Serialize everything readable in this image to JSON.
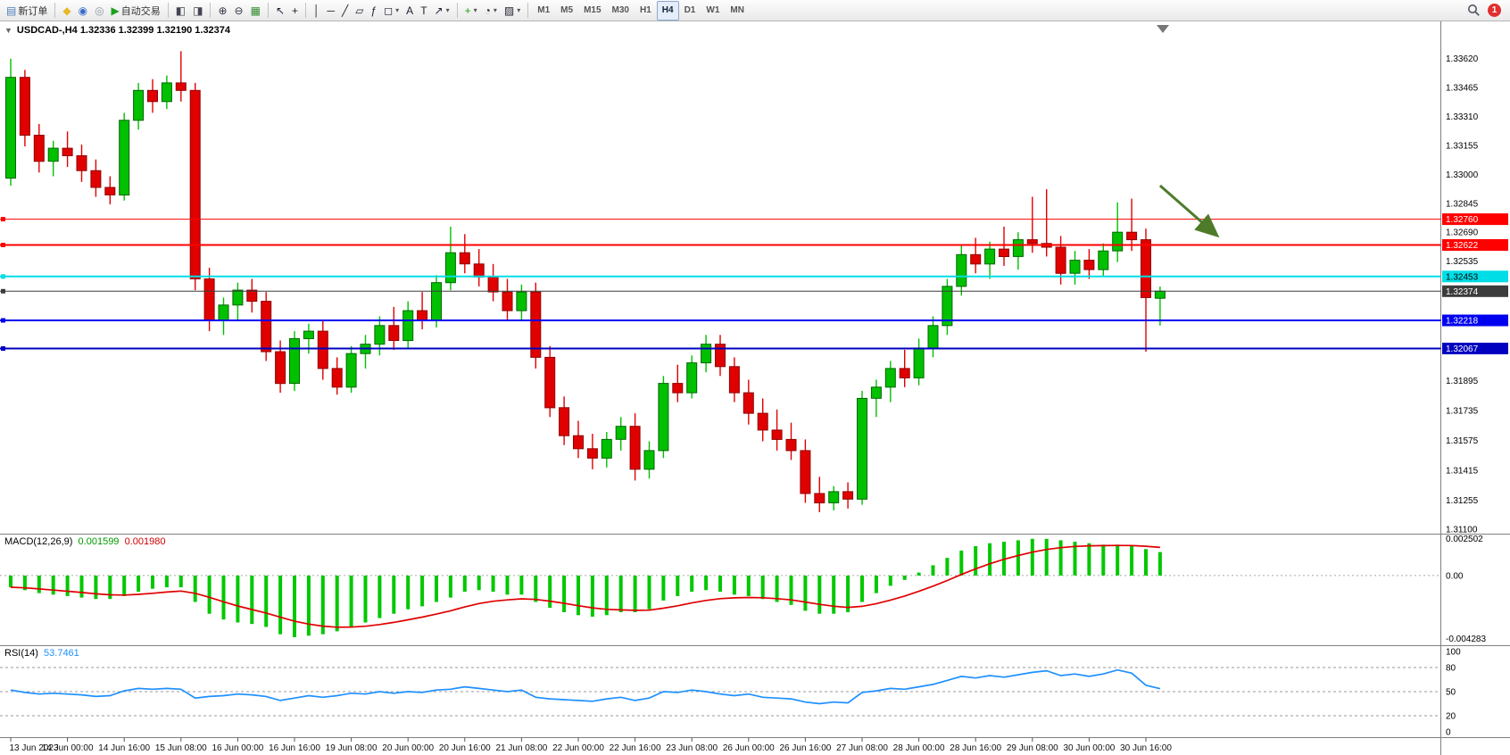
{
  "toolbar": {
    "items": [
      {
        "kind": "button",
        "name": "new-order-button",
        "icon": "new-order-icon",
        "glyph": "▤",
        "glyph_color": "#4a7ebb",
        "label": "新订单"
      },
      {
        "kind": "sep"
      },
      {
        "kind": "icon",
        "name": "favorites-icon",
        "glyph": "◆",
        "color": "#e9b728"
      },
      {
        "kind": "icon",
        "name": "community-icon",
        "glyph": "◉",
        "color": "#3a6bc9"
      },
      {
        "kind": "icon",
        "name": "support-icon",
        "glyph": "◎",
        "color": "#8a9aa8"
      },
      {
        "kind": "button",
        "name": "auto-trading-button",
        "icon": "play-icon",
        "glyph": "▶",
        "glyph_color": "#1da11d",
        "label": "自动交易"
      },
      {
        "kind": "sep"
      },
      {
        "kind": "icon",
        "name": "new-chart-icon",
        "glyph": "◧",
        "color": "#445"
      },
      {
        "kind": "icon",
        "name": "profiles-icon",
        "glyph": "◨",
        "color": "#445"
      },
      {
        "kind": "sep"
      },
      {
        "kind": "icon",
        "name": "zoom-in-icon",
        "glyph": "⊕",
        "color": "#334"
      },
      {
        "kind": "icon",
        "name": "zoom-out-icon",
        "glyph": "⊖",
        "color": "#334"
      },
      {
        "kind": "icon",
        "name": "tile-windows-icon",
        "glyph": "▦",
        "color": "#2e8b2e"
      },
      {
        "kind": "sep"
      },
      {
        "kind": "icon",
        "name": "cursor-icon",
        "glyph": "↖",
        "color": "#223"
      },
      {
        "kind": "icon",
        "name": "crosshair-icon",
        "glyph": "+",
        "color": "#223"
      },
      {
        "kind": "sep"
      },
      {
        "kind": "icon",
        "name": "vertical-line-icon",
        "glyph": "│",
        "color": "#223"
      },
      {
        "kind": "icon",
        "name": "horizontal-line-icon",
        "glyph": "─",
        "color": "#223"
      },
      {
        "kind": "icon",
        "name": "trendline-icon",
        "glyph": "╱",
        "color": "#223"
      },
      {
        "kind": "icon",
        "name": "channel-icon",
        "glyph": "▱",
        "color": "#223"
      },
      {
        "kind": "icon",
        "name": "fibonacci-icon",
        "glyph": "ƒ",
        "color": "#223"
      },
      {
        "kind": "icon",
        "name": "shapes-icon",
        "glyph": "◻",
        "color": "#223",
        "caret": true
      },
      {
        "kind": "icon",
        "name": "text-icon",
        "glyph": "A",
        "color": "#223"
      },
      {
        "kind": "icon",
        "name": "label-icon",
        "glyph": "T",
        "color": "#223"
      },
      {
        "kind": "icon",
        "name": "arrows-icon",
        "glyph": "↗",
        "color": "#223",
        "caret": true
      },
      {
        "kind": "sep"
      },
      {
        "kind": "icon",
        "name": "indicators-icon",
        "glyph": "+",
        "color": "#1da11d",
        "caret": true
      },
      {
        "kind": "icon",
        "name": "periods-icon",
        "glyph": "◔",
        "color": "#223",
        "caret": true
      },
      {
        "kind": "icon",
        "name": "templates-icon",
        "glyph": "▨",
        "color": "#223",
        "caret": true
      },
      {
        "kind": "sep"
      },
      {
        "kind": "tf",
        "name": "timeframe-m1-button",
        "label": "M1"
      },
      {
        "kind": "tf",
        "name": "timeframe-m5-button",
        "label": "M5"
      },
      {
        "kind": "tf",
        "name": "timeframe-m15-button",
        "label": "M15"
      },
      {
        "kind": "tf",
        "name": "timeframe-m30-button",
        "label": "M30"
      },
      {
        "kind": "tf",
        "name": "timeframe-h1-button",
        "label": "H1"
      },
      {
        "kind": "tf",
        "name": "timeframe-h4-button",
        "label": "H4",
        "active": true
      },
      {
        "kind": "tf",
        "name": "timeframe-d1-button",
        "label": "D1"
      },
      {
        "kind": "tf",
        "name": "timeframe-w1-button",
        "label": "W1"
      },
      {
        "kind": "tf",
        "name": "timeframe-mn-button",
        "label": "MN"
      }
    ],
    "right": {
      "search_icon": "search-icon",
      "notification_count": "1"
    }
  },
  "chart_header": {
    "collapse_glyph": "▼",
    "title": "USDCAD-,H4 1.32336 1.32399 1.32190 1.32374"
  },
  "panels": {
    "macd": {
      "label": "MACD(12,26,9)",
      "main": "0.001599",
      "signal": "0.001980"
    },
    "rsi": {
      "label": "RSI(14)",
      "value": "53.7461"
    }
  },
  "colors": {
    "candle_up": "#00c000",
    "candle_up_border": "#006600",
    "candle_down": "#e00000",
    "candle_down_border": "#900000",
    "macd_histogram": "#00c800",
    "macd_signal": "#e00000",
    "rsi_line": "#1e90ff",
    "axis_line": "#808080",
    "arrow": "#4e7b2a"
  },
  "chart_data": [
    {
      "type": "candlestick",
      "symbol": "USDCAD",
      "timeframe": "H4",
      "ohlc_display": {
        "open": 1.32336,
        "high": 1.32399,
        "low": 1.3219,
        "close": 1.32374
      },
      "y_axis": {
        "min": 1.311,
        "max": 1.3362,
        "ticks": [
          "1.33620",
          "1.33465",
          "1.33310",
          "1.33155",
          "1.33000",
          "1.32845",
          "1.32690",
          "1.32535",
          "1.31895",
          "1.31735",
          "1.31575",
          "1.31415",
          "1.31255",
          "1.31100"
        ]
      },
      "x_labels": [
        "13 Jun 2023",
        "14 Jun 00:00",
        "14 Jun 16:00",
        "15 Jun 08:00",
        "16 Jun 00:00",
        "16 Jun 16:00",
        "19 Jun 08:00",
        "20 Jun 00:00",
        "20 Jun 16:00",
        "21 Jun 08:00",
        "22 Jun 00:00",
        "22 Jun 16:00",
        "23 Jun 08:00",
        "26 Jun 00:00",
        "26 Jun 16:00",
        "27 Jun 08:00",
        "28 Jun 00:00",
        "28 Jun 16:00",
        "29 Jun 08:00",
        "30 Jun 00:00",
        "30 Jun 16:00"
      ],
      "label_every_n_candles": 4,
      "levels": [
        {
          "label": "1.32760",
          "price": 1.3276,
          "color": "#ff0000",
          "width": 1,
          "text_color": "#ffffff"
        },
        {
          "label": "1.32622",
          "price": 1.32622,
          "color": "#ff0000",
          "width": 2,
          "text_color": "#ffffff"
        },
        {
          "label": "1.32453",
          "price": 1.32453,
          "color": "#00dde6",
          "width": 2,
          "text_color": "#000000"
        },
        {
          "label": "1.32374",
          "price": 1.32374,
          "color": "#3c3c3c",
          "width": 1,
          "text_color": "#ffffff",
          "current": true
        },
        {
          "label": "1.32218",
          "price": 1.32218,
          "color": "#0000f0",
          "width": 2,
          "text_color": "#ffffff"
        },
        {
          "label": "1.32067",
          "price": 1.32067,
          "color": "#0000c0",
          "width": 2,
          "text_color": "#ffffff"
        }
      ],
      "annotation_arrow": {
        "from_index": 81.0,
        "from_price": 1.3294,
        "to_index": 84.9,
        "to_price": 1.3268
      },
      "candles": [
        [
          1.3298,
          1.3362,
          1.3294,
          1.3352
        ],
        [
          1.3352,
          1.3356,
          1.3315,
          1.3321
        ],
        [
          1.3321,
          1.3327,
          1.3301,
          1.3307
        ],
        [
          1.3307,
          1.3318,
          1.3299,
          1.3314
        ],
        [
          1.3314,
          1.3323,
          1.3304,
          1.331
        ],
        [
          1.331,
          1.3316,
          1.3296,
          1.3302
        ],
        [
          1.3302,
          1.3308,
          1.3288,
          1.3293
        ],
        [
          1.3293,
          1.3299,
          1.3284,
          1.3289
        ],
        [
          1.3289,
          1.3333,
          1.3286,
          1.3329
        ],
        [
          1.3329,
          1.3349,
          1.3324,
          1.3345
        ],
        [
          1.3345,
          1.3351,
          1.3333,
          1.3339
        ],
        [
          1.3339,
          1.3353,
          1.3335,
          1.3349
        ],
        [
          1.3349,
          1.3366,
          1.3339,
          1.3345
        ],
        [
          1.3345,
          1.3349,
          1.3238,
          1.3244
        ],
        [
          1.3244,
          1.325,
          1.3216,
          1.3222
        ],
        [
          1.3222,
          1.3234,
          1.3214,
          1.323
        ],
        [
          1.323,
          1.3242,
          1.3222,
          1.3238
        ],
        [
          1.3238,
          1.3244,
          1.3226,
          1.3232
        ],
        [
          1.3232,
          1.3237,
          1.32,
          1.3205
        ],
        [
          1.3205,
          1.3211,
          1.3183,
          1.3188
        ],
        [
          1.3188,
          1.3216,
          1.3184,
          1.3212
        ],
        [
          1.3212,
          1.322,
          1.3204,
          1.3216
        ],
        [
          1.3216,
          1.3222,
          1.319,
          1.3196
        ],
        [
          1.3196,
          1.3202,
          1.3182,
          1.3186
        ],
        [
          1.3186,
          1.3208,
          1.3183,
          1.3204
        ],
        [
          1.3204,
          1.3214,
          1.3196,
          1.3209
        ],
        [
          1.3209,
          1.3224,
          1.3203,
          1.3219
        ],
        [
          1.3219,
          1.3229,
          1.3206,
          1.3211
        ],
        [
          1.3211,
          1.3232,
          1.3207,
          1.3227
        ],
        [
          1.3227,
          1.3237,
          1.3217,
          1.3222
        ],
        [
          1.3222,
          1.3246,
          1.3218,
          1.3242
        ],
        [
          1.3242,
          1.3272,
          1.3238,
          1.3258
        ],
        [
          1.3258,
          1.3268,
          1.3247,
          1.3252
        ],
        [
          1.3252,
          1.326,
          1.324,
          1.3245
        ],
        [
          1.3245,
          1.3252,
          1.3232,
          1.3237
        ],
        [
          1.3237,
          1.3244,
          1.3222,
          1.3227
        ],
        [
          1.3227,
          1.3241,
          1.3222,
          1.3237
        ],
        [
          1.3237,
          1.3242,
          1.3196,
          1.3202
        ],
        [
          1.3202,
          1.3208,
          1.317,
          1.3175
        ],
        [
          1.3175,
          1.3181,
          1.3155,
          1.316
        ],
        [
          1.316,
          1.3168,
          1.3148,
          1.3153
        ],
        [
          1.3153,
          1.3161,
          1.3142,
          1.3148
        ],
        [
          1.3148,
          1.3162,
          1.3143,
          1.3158
        ],
        [
          1.3158,
          1.317,
          1.3152,
          1.3165
        ],
        [
          1.3165,
          1.3172,
          1.3136,
          1.3142
        ],
        [
          1.3142,
          1.3157,
          1.3137,
          1.3152
        ],
        [
          1.3152,
          1.3192,
          1.3148,
          1.3188
        ],
        [
          1.3188,
          1.3198,
          1.3178,
          1.3183
        ],
        [
          1.3183,
          1.3203,
          1.318,
          1.3199
        ],
        [
          1.3199,
          1.3214,
          1.3194,
          1.3209
        ],
        [
          1.3209,
          1.3214,
          1.3192,
          1.3197
        ],
        [
          1.3197,
          1.3202,
          1.3178,
          1.3183
        ],
        [
          1.3183,
          1.319,
          1.3166,
          1.3172
        ],
        [
          1.3172,
          1.318,
          1.3157,
          1.3163
        ],
        [
          1.3163,
          1.3174,
          1.3152,
          1.3158
        ],
        [
          1.3158,
          1.3167,
          1.3147,
          1.3152
        ],
        [
          1.3152,
          1.3158,
          1.3124,
          1.3129
        ],
        [
          1.3129,
          1.3138,
          1.3119,
          1.3124
        ],
        [
          1.3124,
          1.3133,
          1.312,
          1.313
        ],
        [
          1.313,
          1.3135,
          1.3121,
          1.3126
        ],
        [
          1.3126,
          1.3184,
          1.3123,
          1.318
        ],
        [
          1.318,
          1.319,
          1.317,
          1.3186
        ],
        [
          1.3186,
          1.32,
          1.3178,
          1.3196
        ],
        [
          1.3196,
          1.3206,
          1.3186,
          1.3191
        ],
        [
          1.3191,
          1.3212,
          1.3187,
          1.3207
        ],
        [
          1.3207,
          1.3224,
          1.3202,
          1.3219
        ],
        [
          1.3219,
          1.3244,
          1.3214,
          1.324
        ],
        [
          1.324,
          1.3262,
          1.3235,
          1.3257
        ],
        [
          1.3257,
          1.3266,
          1.3247,
          1.3252
        ],
        [
          1.3252,
          1.3264,
          1.3244,
          1.326
        ],
        [
          1.326,
          1.3272,
          1.3251,
          1.3256
        ],
        [
          1.3256,
          1.3269,
          1.3249,
          1.3265
        ],
        [
          1.3265,
          1.3288,
          1.3258,
          1.3263
        ],
        [
          1.3263,
          1.3292,
          1.3256,
          1.3261
        ],
        [
          1.3261,
          1.3267,
          1.3241,
          1.3247
        ],
        [
          1.3247,
          1.3259,
          1.3241,
          1.3254
        ],
        [
          1.3254,
          1.326,
          1.3244,
          1.3249
        ],
        [
          1.3249,
          1.3263,
          1.3245,
          1.3259
        ],
        [
          1.3259,
          1.3285,
          1.3253,
          1.3269
        ],
        [
          1.3269,
          1.3287,
          1.3259,
          1.3265
        ],
        [
          1.3265,
          1.3271,
          1.3205,
          1.3234
        ],
        [
          1.32336,
          1.32399,
          1.3219,
          1.32374
        ]
      ]
    },
    {
      "type": "macd",
      "title": "MACD(12,26,9)",
      "main_value": 0.001599,
      "signal_value": 0.00198,
      "signal_ema_period": 9,
      "y_ticks": [
        {
          "label": "0.002502",
          "value": 0.002502
        },
        {
          "label": "0.00",
          "value": 0
        },
        {
          "label": "-0.004283",
          "value": -0.004283
        }
      ],
      "values": [
        -0.0008,
        -0.001,
        -0.0012,
        -0.0013,
        -0.0014,
        -0.0015,
        -0.0016,
        -0.0016,
        -0.0014,
        -0.0011,
        -0.0009,
        -0.0008,
        -0.0008,
        -0.0018,
        -0.0026,
        -0.003,
        -0.0032,
        -0.0033,
        -0.0035,
        -0.004,
        -0.0042,
        -0.0041,
        -0.004,
        -0.0038,
        -0.0035,
        -0.0032,
        -0.0029,
        -0.0026,
        -0.0023,
        -0.0021,
        -0.0018,
        -0.0015,
        -0.0011,
        -0.001,
        -0.0011,
        -0.0013,
        -0.0013,
        -0.0018,
        -0.0022,
        -0.0025,
        -0.0027,
        -0.0028,
        -0.0027,
        -0.0025,
        -0.0025,
        -0.0023,
        -0.0017,
        -0.0014,
        -0.0011,
        -0.001,
        -0.0011,
        -0.0013,
        -0.0014,
        -0.0016,
        -0.0018,
        -0.002,
        -0.0024,
        -0.0026,
        -0.0026,
        -0.0025,
        -0.0018,
        -0.0012,
        -0.0007,
        -0.0003,
        0.0002,
        0.0007,
        0.0012,
        0.0017,
        0.002,
        0.0022,
        0.0023,
        0.0024,
        0.0025,
        0.0025,
        0.0024,
        0.0023,
        0.0022,
        0.0021,
        0.0021,
        0.002,
        0.0018,
        0.0016
      ]
    },
    {
      "type": "rsi",
      "title": "RSI(14)",
      "value": 53.7461,
      "period": 14,
      "levels": [
        80,
        50,
        20
      ],
      "y_ticks": [
        {
          "label": "100",
          "value": 100
        },
        {
          "label": "80",
          "value": 80
        },
        {
          "label": "50",
          "value": 50
        },
        {
          "label": "20",
          "value": 20
        },
        {
          "label": "0",
          "value": 0
        }
      ],
      "values": [
        52,
        49,
        47,
        48,
        47,
        46,
        44,
        45,
        51,
        54,
        53,
        54,
        53,
        42,
        44,
        45,
        47,
        46,
        44,
        39,
        42,
        45,
        43,
        45,
        48,
        47,
        50,
        48,
        50,
        49,
        52,
        53,
        56,
        54,
        52,
        50,
        52,
        43,
        41,
        40,
        39,
        38,
        41,
        43,
        39,
        42,
        50,
        49,
        52,
        50,
        47,
        45,
        47,
        43,
        42,
        41,
        37,
        35,
        37,
        36,
        49,
        51,
        54,
        53,
        56,
        59,
        64,
        69,
        67,
        70,
        68,
        71,
        74,
        76,
        70,
        72,
        69,
        72,
        77,
        73,
        58,
        53.7
      ]
    }
  ]
}
